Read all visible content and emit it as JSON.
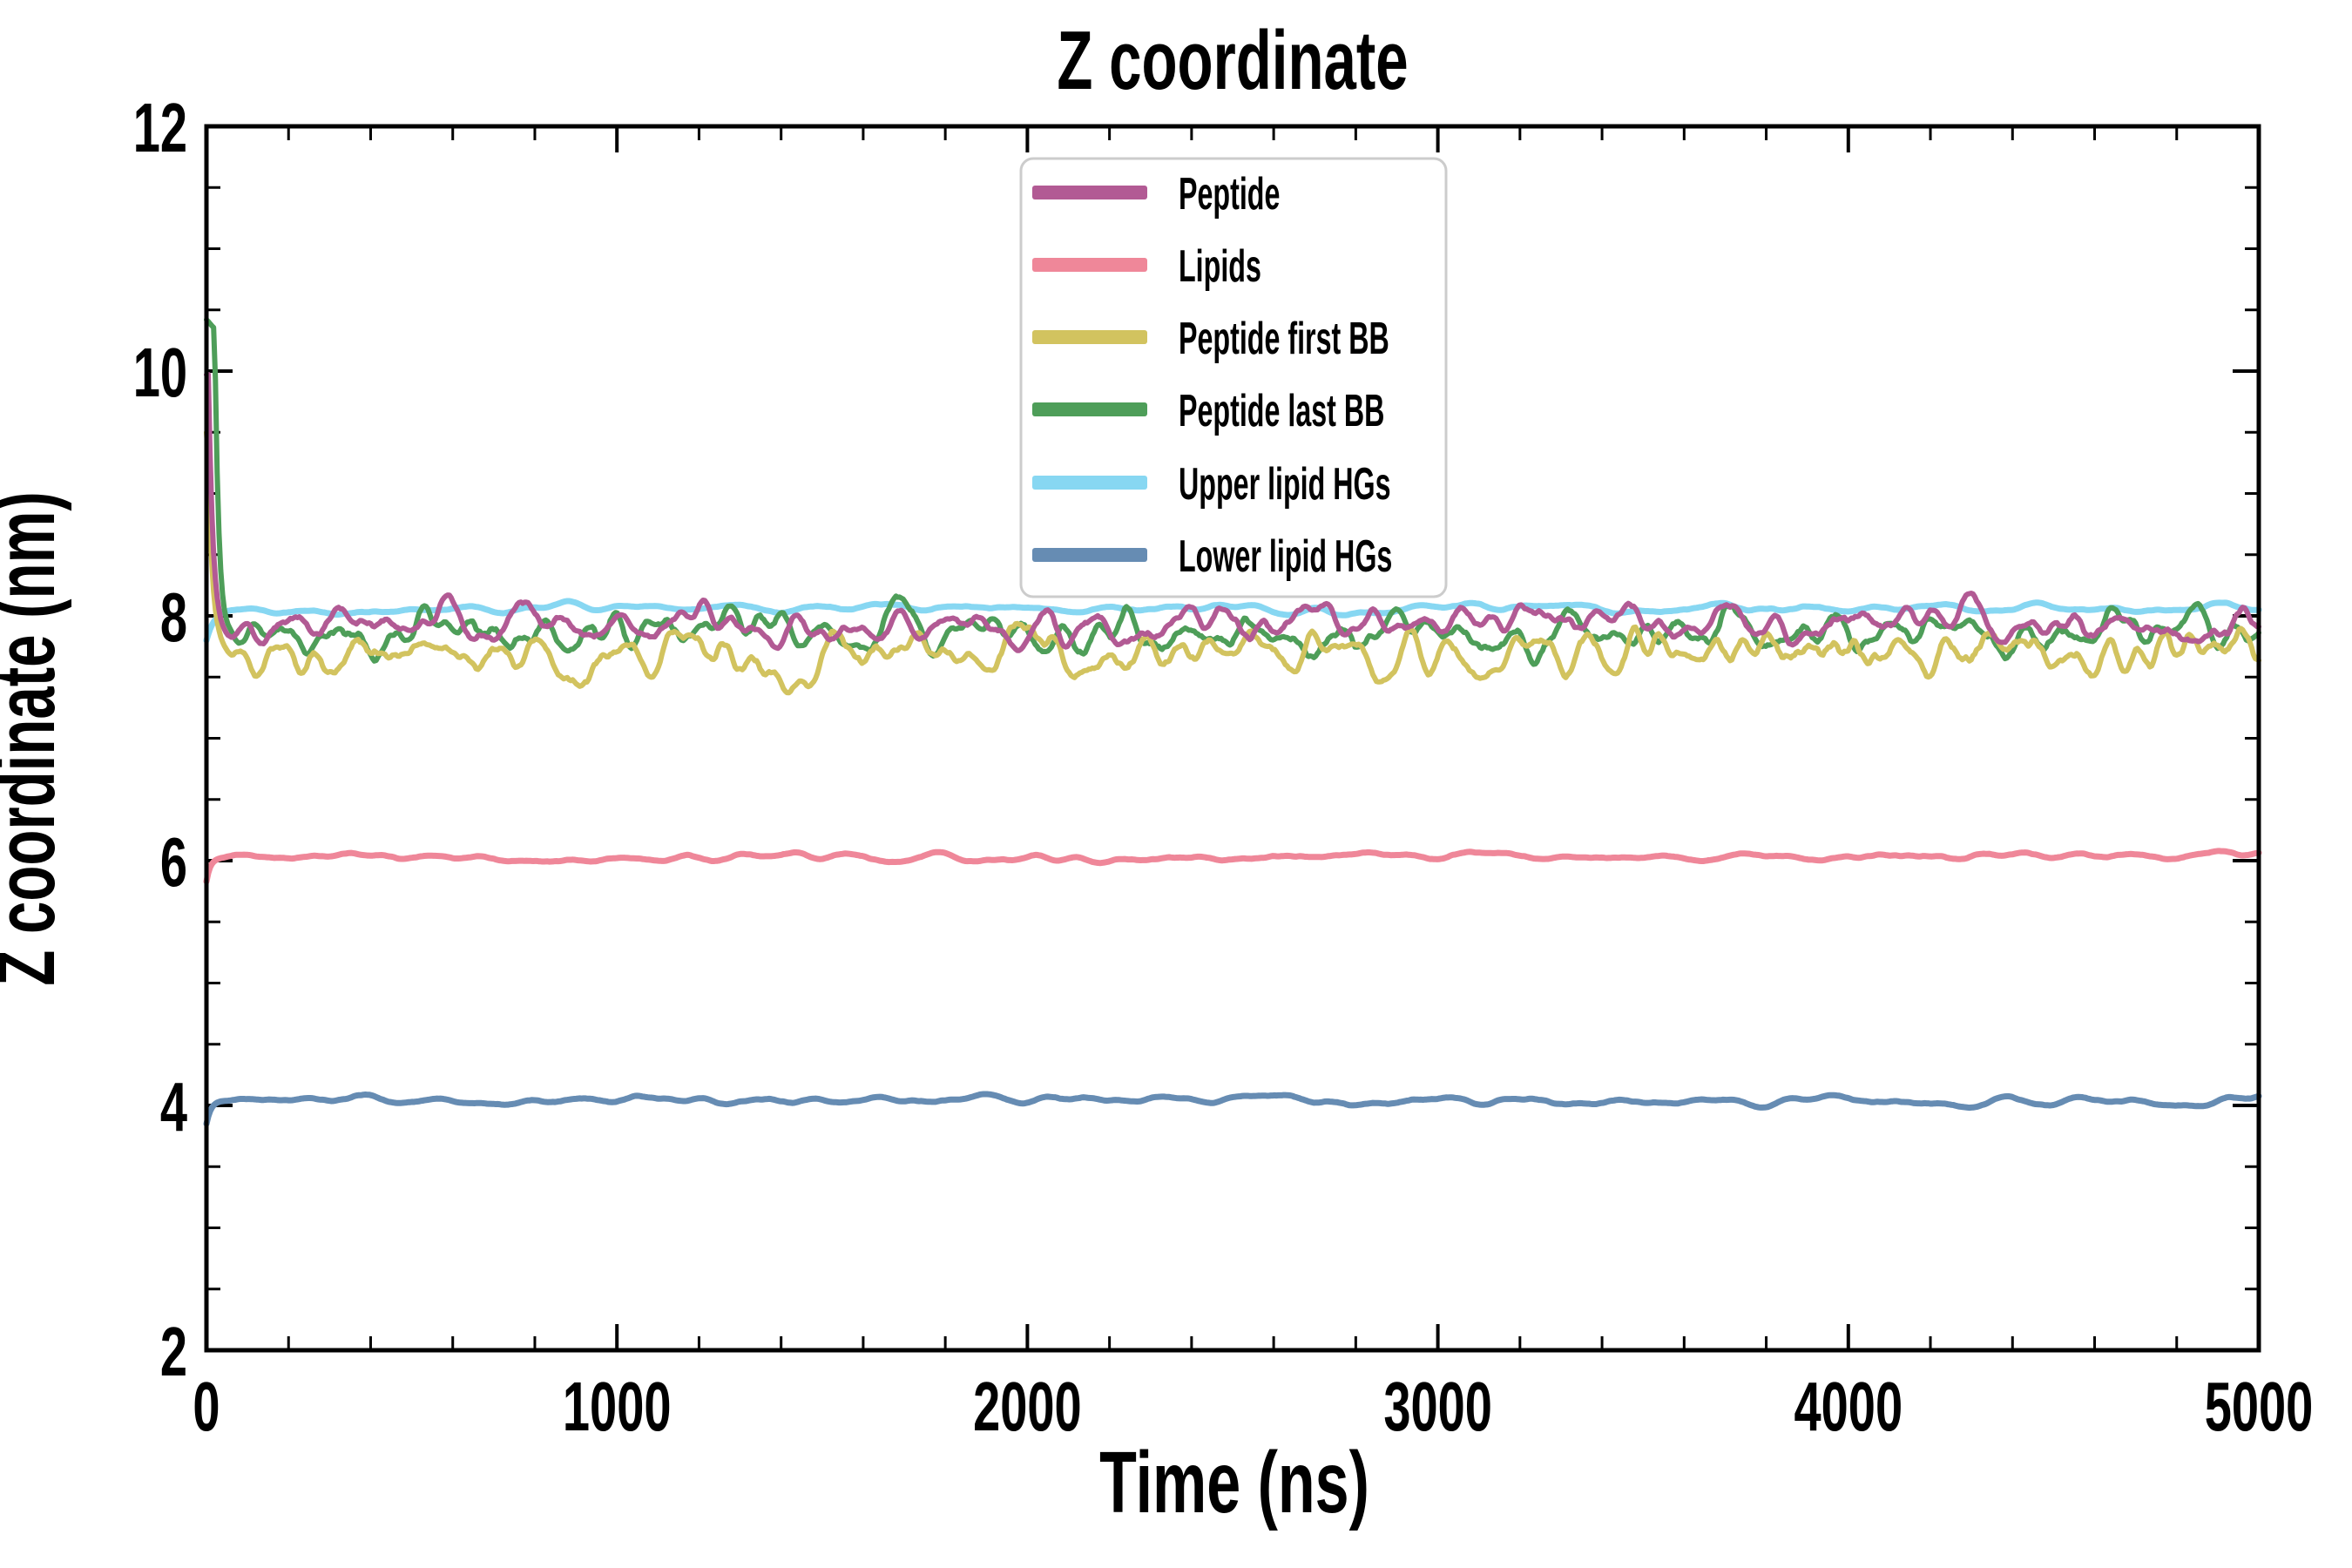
{
  "figure": {
    "background": "#ffffff",
    "axis_color": "#000000"
  },
  "chart_data": {
    "type": "line",
    "title": "Z coordinate",
    "xlabel": "Time (ns)",
    "ylabel": "Z coordinate (nm)",
    "xlim": [
      0,
      5000
    ],
    "ylim": [
      2,
      12
    ],
    "x_major_ticks": [
      0,
      1000,
      2000,
      3000,
      4000,
      5000
    ],
    "x_minor_step": 200,
    "y_major_ticks": [
      2,
      4,
      6,
      8,
      10,
      12
    ],
    "y_minor_step": 0.5,
    "grid": false,
    "tick_direction": "in",
    "legend_position": "upper center",
    "legend_frame_color": "#cccccc",
    "legend_background": "rgba(255,255,255,0.8)",
    "series": [
      {
        "name": "Peptide",
        "color": "#b25a94",
        "linewidth": 6,
        "start_value": 9.97,
        "settle_delay_ns": 5,
        "settle_tau_ns": 10,
        "equilibrium_mean": 7.93,
        "fluctuation_std": 0.085,
        "wiggle_period_ns": 70
      },
      {
        "name": "Lipids",
        "color": "#ef8799",
        "linewidth": 7,
        "start_value": 5.83,
        "settle_delay_ns": 0,
        "settle_tau_ns": 10,
        "equilibrium_mean": 6.03,
        "fluctuation_std": 0.02,
        "wiggle_period_ns": 110
      },
      {
        "name": "Peptide first BB",
        "color": "#d2c35f",
        "linewidth": 6,
        "start_value": 9.5,
        "settle_delay_ns": 3,
        "settle_tau_ns": 11,
        "equilibrium_mean": 7.69,
        "fluctuation_std": 0.105,
        "wiggle_period_ns": 70
      },
      {
        "name": "Peptide last BB",
        "color": "#4e9e59",
        "linewidth": 6,
        "start_value": 10.42,
        "settle_delay_ns": 20,
        "settle_tau_ns": 10,
        "equilibrium_mean": 7.86,
        "fluctuation_std": 0.095,
        "wiggle_period_ns": 70
      },
      {
        "name": "Upper lipid HGs",
        "color": "#87d7f2",
        "linewidth": 7,
        "start_value": 7.8,
        "settle_delay_ns": 0,
        "settle_tau_ns": 20,
        "equilibrium_mean": 8.06,
        "fluctuation_std": 0.022,
        "wiggle_period_ns": 110
      },
      {
        "name": "Lower lipid HGs",
        "color": "#668cb3",
        "linewidth": 7,
        "start_value": 3.85,
        "settle_delay_ns": 0,
        "settle_tau_ns": 12,
        "equilibrium_mean": 4.04,
        "fluctuation_std": 0.022,
        "wiggle_period_ns": 110
      }
    ],
    "draw_order_back_to_front": [
      5,
      4,
      3,
      2,
      1,
      0
    ]
  }
}
